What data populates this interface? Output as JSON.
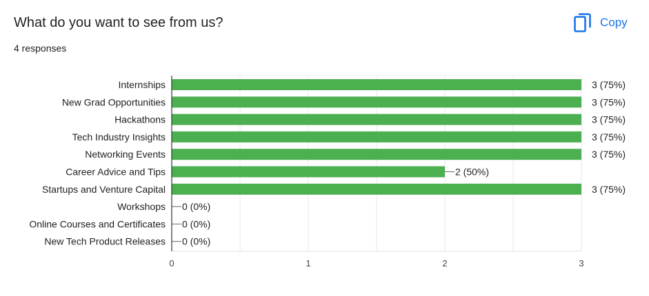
{
  "header": {
    "title": "What do you want to see from us?",
    "responses": "4 responses",
    "copy_label": "Copy"
  },
  "colors": {
    "bar": "#4caf50",
    "accent": "#1a73e8"
  },
  "chart_data": {
    "type": "bar",
    "orientation": "horizontal",
    "categories": [
      "Internships",
      "New Grad Opportunities",
      "Hackathons",
      "Tech Industry Insights",
      "Networking Events",
      "Career Advice and Tips",
      "Startups and Venture Capital",
      "Workshops",
      "Online Courses and Certificates",
      "New Tech Product Releases"
    ],
    "values": [
      3,
      3,
      3,
      3,
      3,
      2,
      3,
      0,
      0,
      0
    ],
    "data_labels": [
      "3 (75%)",
      "3 (75%)",
      "3 (75%)",
      "3 (75%)",
      "3 (75%)",
      "2 (50%)",
      "3 (75%)",
      "0 (0%)",
      "0 (0%)",
      "0 (0%)"
    ],
    "xlim": [
      0,
      3
    ],
    "xticks": [
      "0",
      "1",
      "2",
      "3"
    ],
    "grid": true
  }
}
